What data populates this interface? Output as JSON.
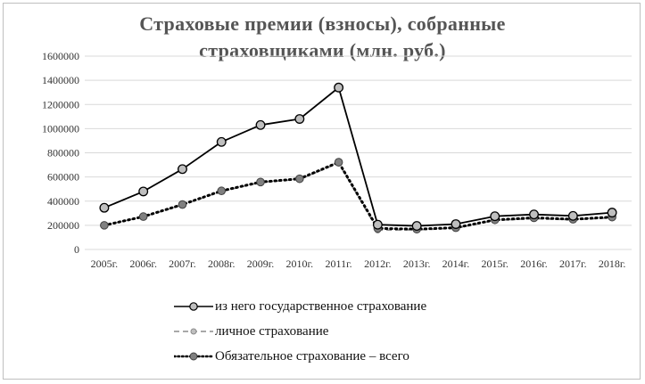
{
  "chart_data": {
    "type": "line",
    "title": "Страховые премии (взносы), собранные страховщиками (млн. руб.)",
    "title_lines": [
      "Страховые премии (взносы), собранные",
      "страховщиками (млн. руб.)"
    ],
    "categories": [
      "2005г.",
      "2006г.",
      "2007г.",
      "2008г.",
      "2009г.",
      "2010г.",
      "2011г.",
      "2012г.",
      "2013г.",
      "2014г.",
      "2015г.",
      "2016г.",
      "2017г.",
      "2018г."
    ],
    "y_ticks": [
      "0",
      "200000",
      "400000",
      "600000",
      "800000",
      "1000000",
      "1200000",
      "1400000",
      "1600000"
    ],
    "ylim": [
      0,
      1600000
    ],
    "xlabel": "",
    "ylabel": "",
    "grid": true,
    "legend_position": "bottom",
    "series": [
      {
        "name": "из него государственное страхование",
        "style": "solid-circle",
        "values": [
          345000,
          480000,
          665000,
          890000,
          1030000,
          1080000,
          1340000,
          205000,
          195000,
          210000,
          275000,
          290000,
          278000,
          305000
        ]
      },
      {
        "name": "личное страхование",
        "style": "dashed-small-marker",
        "values": [
          200000,
          270000,
          368000,
          480000,
          555000,
          580000,
          715000,
          160000,
          162000,
          175000,
          240000,
          255000,
          245000,
          262000
        ]
      },
      {
        "name": "Обязательное страхование – всего",
        "style": "dotted-circle",
        "values": [
          200000,
          272000,
          372000,
          485000,
          558000,
          585000,
          722000,
          175000,
          168000,
          180000,
          245000,
          262000,
          250000,
          268000
        ]
      }
    ]
  },
  "colors": {
    "line_dark": "#000000",
    "line_gray": "#8c8c8c",
    "marker_fill": "#bfbfbf",
    "marker_fill_dark": "#808080",
    "grid": "#d9d9d9",
    "title": "#555555"
  }
}
